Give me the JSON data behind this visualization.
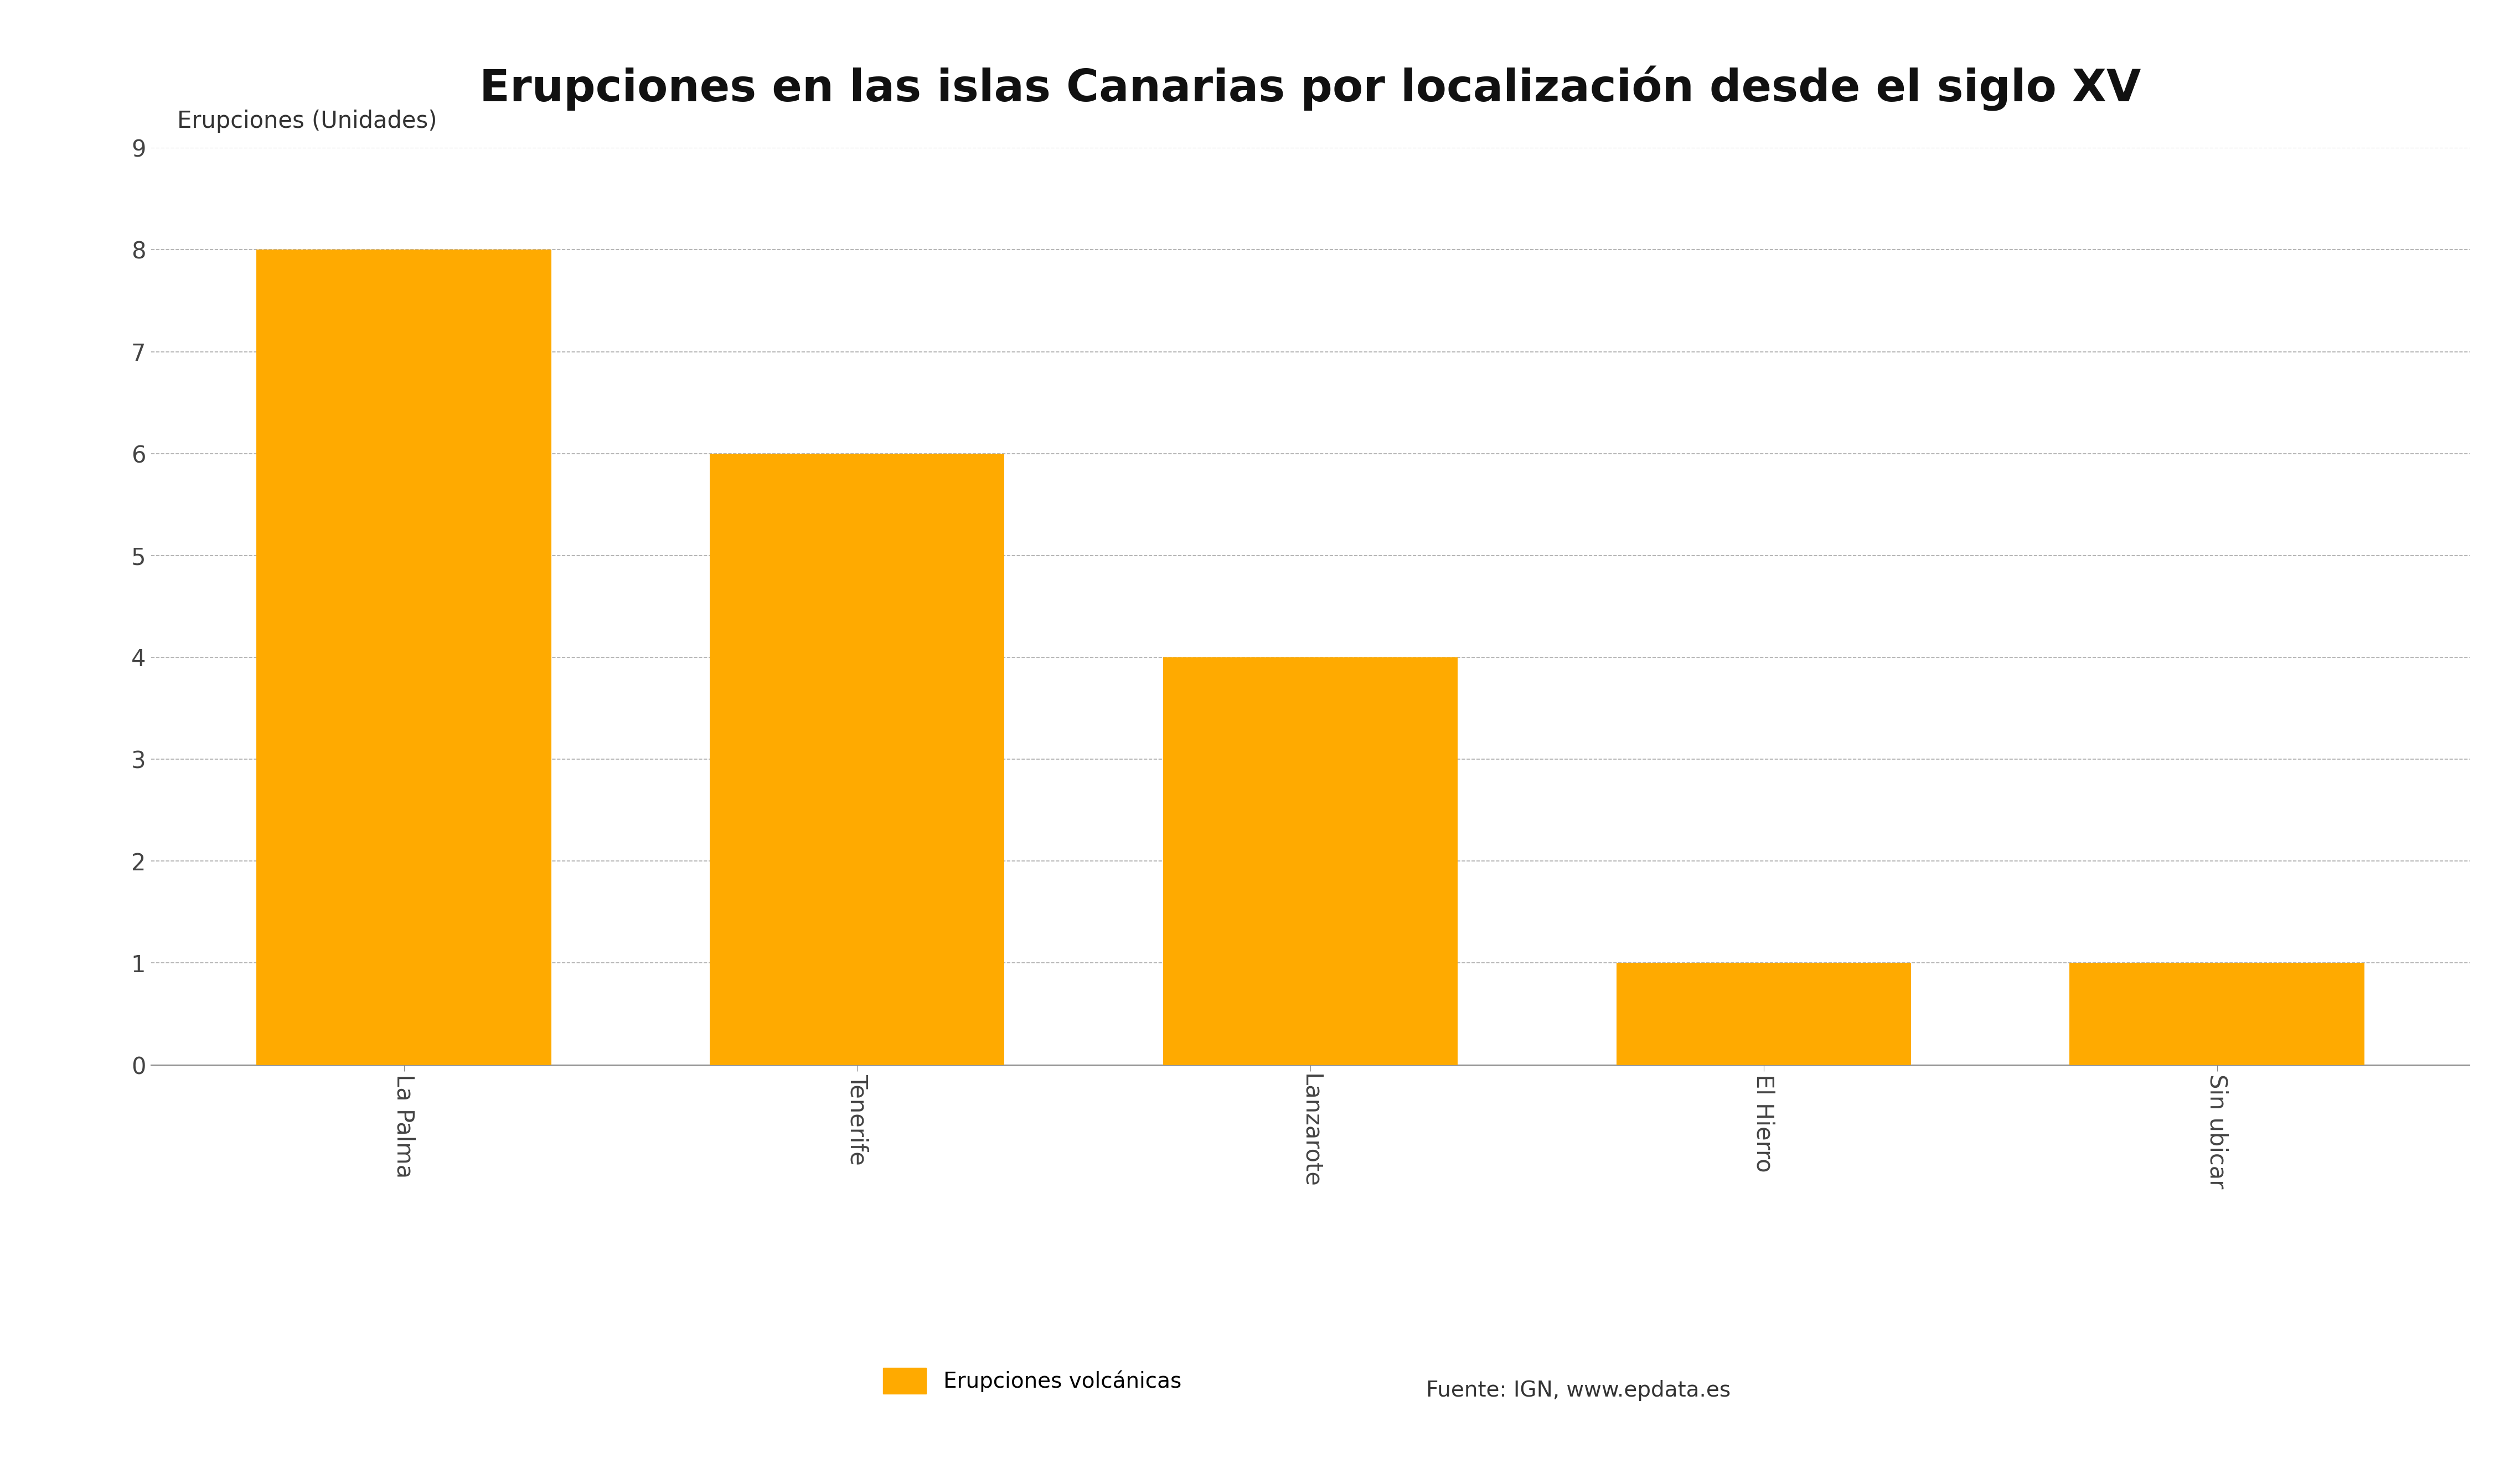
{
  "title": "Erupciones en las islas Canarias por localización desde el siglo XV",
  "ylabel": "Erupciones (Unidades)",
  "categories": [
    "La Palma",
    "Tenerife",
    "Lanzarote",
    "El Hierro",
    "Sin ubicar"
  ],
  "values": [
    8,
    6,
    4,
    1,
    1
  ],
  "bar_color": "#FFAA00",
  "ylim": [
    0,
    9
  ],
  "yticks": [
    0,
    1,
    2,
    3,
    4,
    5,
    6,
    7,
    8,
    9
  ],
  "legend_label": "Erupciones volcánicas",
  "source_text": "Fuente: IGN, www.epdata.es",
  "background_color": "#ffffff",
  "grid_color": "#aaaaaa",
  "title_fontsize": 58,
  "ylabel_fontsize": 30,
  "tick_fontsize": 30,
  "legend_fontsize": 28,
  "bar_width": 0.65
}
